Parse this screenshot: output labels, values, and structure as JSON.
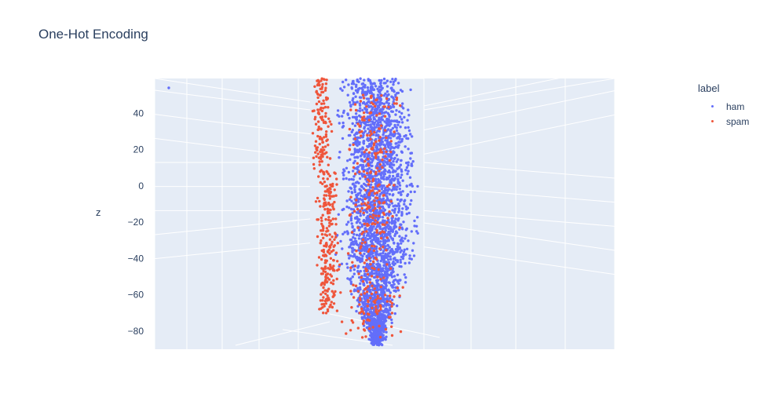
{
  "chart_data": {
    "type": "scatter3d",
    "title": "One-Hot Encoding",
    "legend": {
      "title": "label",
      "placement": "top-right"
    },
    "zlabel": "z",
    "zlim": [
      -90,
      60
    ],
    "z_ticks": [
      "40",
      "20",
      "0",
      "−20",
      "−40",
      "−60",
      "−80"
    ],
    "z_tick_values": [
      40,
      20,
      0,
      -20,
      -40,
      -60,
      -80
    ],
    "grid": true,
    "series": [
      {
        "name": "ham",
        "color": "#636efa"
      },
      {
        "name": "spam",
        "color": "#ef553b"
      }
    ]
  },
  "colors": {
    "plot_bg": "#e5ecf6",
    "grid": "#ffffff",
    "text": "#2a3f5f"
  }
}
